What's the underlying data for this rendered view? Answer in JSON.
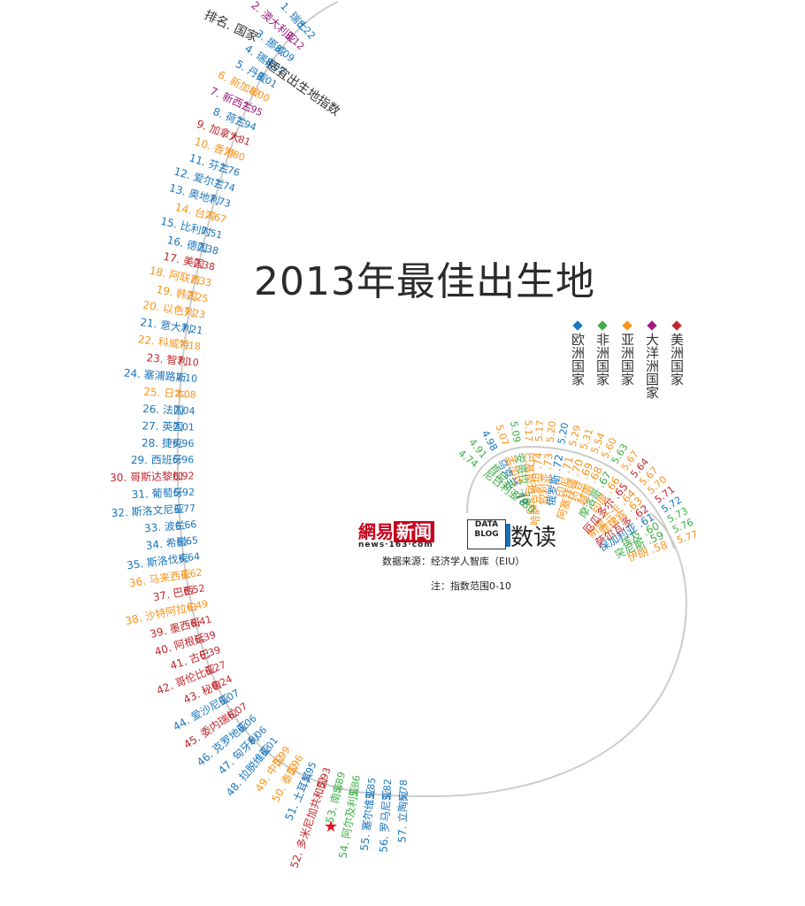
{
  "page": {
    "title": "2013年最佳出生地",
    "header_rank_country": "排名. 国家",
    "header_index": "适宜出生地指数",
    "source": "数据来源：经济学人智库（EIU）",
    "note": "注：指数范围0-10",
    "brand": {
      "logo_part1": "網易",
      "logo_part2": "新闻",
      "site": "news·163·com",
      "data_blog": "DATA BLOG",
      "shudu": "数读"
    }
  },
  "legend": [
    {
      "label": "欧洲国家",
      "color": "#1b75bb",
      "region": "europe"
    },
    {
      "label": "非洲国家",
      "color": "#3fae49",
      "region": "africa"
    },
    {
      "label": "亚洲国家",
      "color": "#f7941d",
      "region": "asia"
    },
    {
      "label": "大洋洲国家",
      "color": "#9e1f80",
      "region": "oceania"
    },
    {
      "label": "美洲国家",
      "color": "#c1272d",
      "region": "americas"
    }
  ],
  "colors": {
    "europe": "#1b75bb",
    "africa": "#3fae49",
    "asia": "#f7941d",
    "oceania": "#9e1f80",
    "americas": "#c1272d",
    "spiral": "#cccccc",
    "china_star": "#e0141e"
  },
  "chart_data": {
    "type": "table",
    "columns": [
      "rank",
      "country",
      "index",
      "region"
    ],
    "ranks": [
      {
        "rank": 1,
        "label": "1. 瑞士",
        "value": "8.22",
        "region": "europe"
      },
      {
        "rank": 2,
        "label": "2. 澳大利亚",
        "value": "8.12",
        "region": "oceania"
      },
      {
        "rank": 3,
        "label": "3. 挪威",
        "value": "8.09",
        "region": "europe"
      },
      {
        "rank": 4,
        "label": "4. 瑞典",
        "value": "8.02",
        "region": "europe"
      },
      {
        "rank": 5,
        "label": "5. 丹麦",
        "value": "8.01",
        "region": "europe"
      },
      {
        "rank": 6,
        "label": "6. 新加坡",
        "value": "8.00",
        "region": "asia"
      },
      {
        "rank": 7,
        "label": "7. 新西兰",
        "value": "7.95",
        "region": "oceania"
      },
      {
        "rank": 8,
        "label": "8. 荷兰",
        "value": "7.94",
        "region": "europe"
      },
      {
        "rank": 9,
        "label": "9. 加拿大",
        "value": "7.81",
        "region": "americas"
      },
      {
        "rank": 10,
        "label": "10. 香港",
        "value": "7.80",
        "region": "asia"
      },
      {
        "rank": 11,
        "label": "11. 芬兰",
        "value": "7.76",
        "region": "europe"
      },
      {
        "rank": 12,
        "label": "12. 爱尔兰",
        "value": "7.74",
        "region": "europe"
      },
      {
        "rank": 13,
        "label": "13. 奥地利",
        "value": "7.73",
        "region": "europe"
      },
      {
        "rank": 14,
        "label": "14. 台湾",
        "value": "7.67",
        "region": "asia"
      },
      {
        "rank": 15,
        "label": "15. 比利时",
        "value": "7.51",
        "region": "europe"
      },
      {
        "rank": 16,
        "label": "16. 德国",
        "value": "7.38",
        "region": "europe"
      },
      {
        "rank": 17,
        "label": "17. 美国",
        "value": "7.38",
        "region": "americas"
      },
      {
        "rank": 18,
        "label": "18. 阿联酋",
        "value": "7.33",
        "region": "asia"
      },
      {
        "rank": 19,
        "label": "19. 韩国",
        "value": "7.25",
        "region": "asia"
      },
      {
        "rank": 20,
        "label": "20. 以色列",
        "value": "7.23",
        "region": "asia"
      },
      {
        "rank": 21,
        "label": "21. 意大利",
        "value": "7.21",
        "region": "europe"
      },
      {
        "rank": 22,
        "label": "22. 科威特",
        "value": "7.18",
        "region": "asia"
      },
      {
        "rank": 23,
        "label": "23. 智利",
        "value": "7.10",
        "region": "americas"
      },
      {
        "rank": 24,
        "label": "24. 塞浦路斯",
        "value": "7.10",
        "region": "europe"
      },
      {
        "rank": 25,
        "label": "25. 日本",
        "value": "7.08",
        "region": "asia"
      },
      {
        "rank": 26,
        "label": "26. 法国",
        "value": "7.04",
        "region": "europe"
      },
      {
        "rank": 27,
        "label": "27. 英国",
        "value": "7.01",
        "region": "europe"
      },
      {
        "rank": 28,
        "label": "28. 捷克",
        "value": "6.96",
        "region": "europe"
      },
      {
        "rank": 29,
        "label": "29. 西班牙",
        "value": "6.96",
        "region": "europe"
      },
      {
        "rank": 30,
        "label": "30. 哥斯达黎加",
        "value": "6.92",
        "region": "americas"
      },
      {
        "rank": 31,
        "label": "31. 葡萄牙",
        "value": "6.92",
        "region": "europe"
      },
      {
        "rank": 32,
        "label": "32. 斯洛文尼亚",
        "value": "6.77",
        "region": "europe"
      },
      {
        "rank": 33,
        "label": "33. 波兰",
        "value": "6.66",
        "region": "europe"
      },
      {
        "rank": 34,
        "label": "34. 希腊",
        "value": "6.65",
        "region": "europe"
      },
      {
        "rank": 35,
        "label": "35. 斯洛伐克",
        "value": "6.64",
        "region": "europe"
      },
      {
        "rank": 36,
        "label": "36. 马来西亚",
        "value": "6.62",
        "region": "asia"
      },
      {
        "rank": 37,
        "label": "37. 巴西",
        "value": "6.52",
        "region": "americas"
      },
      {
        "rank": 38,
        "label": "38. 沙特阿拉伯",
        "value": "6.49",
        "region": "asia"
      },
      {
        "rank": 39,
        "label": "39. 墨西哥",
        "value": "6.41",
        "region": "americas"
      },
      {
        "rank": 40,
        "label": "40. 阿根廷",
        "value": "6.39",
        "region": "americas"
      },
      {
        "rank": 41,
        "label": "41. 古巴",
        "value": "6.39",
        "region": "americas"
      },
      {
        "rank": 42,
        "label": "42. 哥伦比亚",
        "value": "6.27",
        "region": "americas"
      },
      {
        "rank": 43,
        "label": "43. 秘鲁",
        "value": "6.24",
        "region": "americas"
      },
      {
        "rank": 44,
        "label": "44. 爱沙尼亚",
        "value": "6.07",
        "region": "europe"
      },
      {
        "rank": 45,
        "label": "45. 委内瑞拉",
        "value": "6.07",
        "region": "americas"
      },
      {
        "rank": 46,
        "label": "46. 克罗地亚",
        "value": "6.06",
        "region": "europe"
      },
      {
        "rank": 47,
        "label": "47. 匈牙利",
        "value": "6.06",
        "region": "europe"
      },
      {
        "rank": 48,
        "label": "48. 拉脱维亚",
        "value": "6.01",
        "region": "europe"
      },
      {
        "rank": 49,
        "label": "49. 中国",
        "value": "5.99",
        "region": "asia"
      },
      {
        "rank": 50,
        "label": "50. 泰国",
        "value": "5.96",
        "region": "asia"
      },
      {
        "rank": 51,
        "label": "51. 土耳其",
        "value": "5.95",
        "region": "europe"
      },
      {
        "rank": 52,
        "label": "52. 多米尼加共和国",
        "value": "5.93",
        "region": "americas"
      },
      {
        "rank": 53,
        "label": "53. 南非",
        "value": "5.89",
        "region": "africa"
      },
      {
        "rank": 54,
        "label": "54. 阿尔及利亚",
        "value": "5.86",
        "region": "africa"
      },
      {
        "rank": 55,
        "label": "55. 塞尔维亚",
        "value": "5.85",
        "region": "europe"
      },
      {
        "rank": 56,
        "label": "56. 罗马尼亚",
        "value": "5.82",
        "region": "europe"
      },
      {
        "rank": 57,
        "label": "57. 立陶宛",
        "value": "5.78",
        "region": "europe"
      },
      {
        "rank": 58,
        "label": "伊朗 .58",
        "value": "5.77",
        "region": "asia"
      },
      {
        "rank": 59,
        "label": "突尼斯 .59",
        "value": "5.76",
        "region": "africa"
      },
      {
        "rank": 60,
        "label": "埃及 .60",
        "value": "5.73",
        "region": "africa"
      },
      {
        "rank": 61,
        "label": "保加利亚 .61",
        "value": "5.72",
        "region": "europe"
      },
      {
        "rank": 62,
        "label": "萨尔瓦多 .62",
        "value": "5.71",
        "region": "americas"
      },
      {
        "rank": 63,
        "label": "菲律宾 .63",
        "value": "5.70",
        "region": "asia"
      },
      {
        "rank": 64,
        "label": "斯里兰卡 .64",
        "value": "5.67",
        "region": "asia"
      },
      {
        "rank": 65,
        "label": "厄瓜多尔 .65",
        "value": "5.64",
        "region": "americas"
      },
      {
        "rank": 66,
        "label": "印度 .66",
        "value": "5.67",
        "region": "asia"
      },
      {
        "rank": 67,
        "label": "摩洛哥 .67",
        "value": "5.63",
        "region": "africa"
      },
      {
        "rank": 68,
        "label": "越南 .68",
        "value": "5.60",
        "region": "asia"
      },
      {
        "rank": 69,
        "label": "约旦 .69",
        "value": "5.54",
        "region": "asia"
      },
      {
        "rank": 70,
        "label": "阿塞拜疆 .70",
        "value": "5.31",
        "region": "asia"
      },
      {
        "rank": 71,
        "label": "印尼 .71",
        "value": "5.29",
        "region": "asia"
      },
      {
        "rank": 72,
        "label": "俄罗斯 .72",
        "value": "5.20",
        "region": "europe"
      },
      {
        "rank": 73,
        "label": "叙利亚 .73",
        "value": "5.20",
        "region": "asia"
      },
      {
        "rank": 74,
        "label": "哈萨克斯坦 .74",
        "value": "5.17",
        "region": "asia"
      },
      {
        "rank": 75,
        "label": "巴基斯坦 .75",
        "value": "5.17",
        "region": "asia"
      },
      {
        "rank": 76,
        "label": "安哥拉 .76",
        "value": "5.09",
        "region": "africa"
      },
      {
        "rank": 77,
        "label": "孟加拉 .77",
        "value": "5.07",
        "region": "asia"
      },
      {
        "rank": 78,
        "label": "乌克兰 .78",
        "value": "4.98",
        "region": "europe"
      },
      {
        "rank": 79,
        "label": "肯尼亚 .79",
        "value": "4.91",
        "region": "africa"
      },
      {
        "rank": 80,
        "label": "尼日利亚 .80",
        "value": "4.74",
        "region": "africa"
      }
    ]
  }
}
